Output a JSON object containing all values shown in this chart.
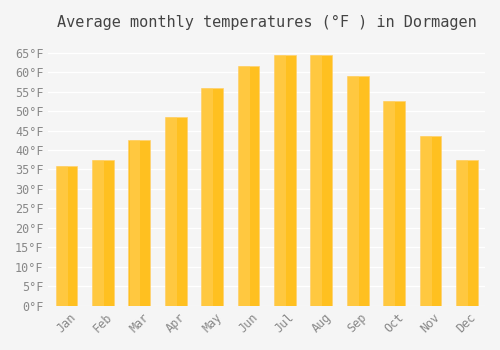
{
  "title": "Average monthly temperatures (°F ) in Dormagen",
  "months": [
    "Jan",
    "Feb",
    "Mar",
    "Apr",
    "May",
    "Jun",
    "Jul",
    "Aug",
    "Sep",
    "Oct",
    "Nov",
    "Dec"
  ],
  "temperatures": [
    36,
    37.5,
    42.5,
    48.5,
    56,
    61.5,
    64.5,
    64.5,
    59,
    52.5,
    43.5,
    37.5
  ],
  "bar_color_top": "#FFC020",
  "bar_color_bottom": "#FFB020",
  "ylim": [
    0,
    68
  ],
  "yticks": [
    0,
    5,
    10,
    15,
    20,
    25,
    30,
    35,
    40,
    45,
    50,
    55,
    60,
    65
  ],
  "ytick_labels": [
    "0°F",
    "5°F",
    "10°F",
    "15°F",
    "20°F",
    "25°F",
    "30°F",
    "35°F",
    "40°F",
    "45°F",
    "50°F",
    "55°F",
    "60°F",
    "65°F"
  ],
  "bg_color": "#f5f5f5",
  "grid_color": "#ffffff",
  "title_fontsize": 11,
  "tick_fontsize": 8.5,
  "font_family": "monospace"
}
